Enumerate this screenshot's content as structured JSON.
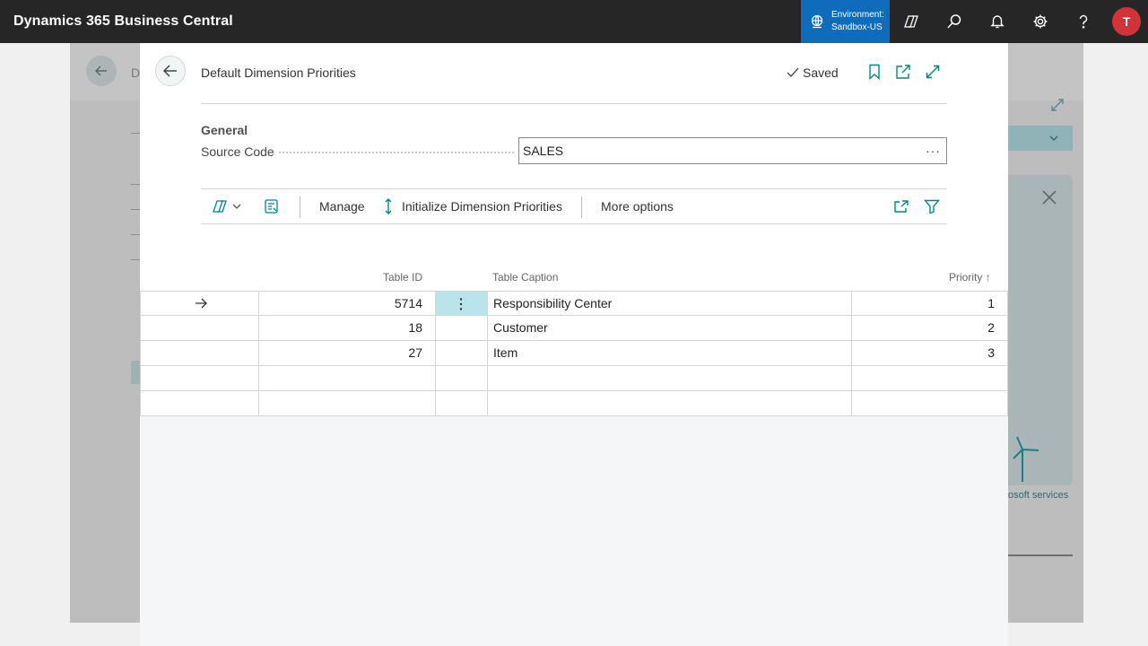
{
  "topbar": {
    "app_title": "Dynamics 365 Business Central",
    "environment_label": "Environment:",
    "environment_name": "Sandbox-US",
    "avatar_initial": "T"
  },
  "background": {
    "breadcrumb_initial": "D",
    "link_text": "osoft services"
  },
  "dialog": {
    "title": "Default Dimension Priorities",
    "status": "Saved",
    "section_title": "General",
    "source_code_label": "Source Code",
    "source_code_value": "SALES",
    "more_glyph": "···"
  },
  "toolbar": {
    "manage": "Manage",
    "initialize": "Initialize Dimension Priorities",
    "more_options": "More options"
  },
  "grid": {
    "columns": {
      "table_id": "Table ID",
      "table_caption": "Table Caption",
      "priority": "Priority",
      "sort_indicator": "↑"
    },
    "rows": [
      {
        "table_id": "5714",
        "table_caption": "Responsibility Center",
        "priority": "1"
      },
      {
        "table_id": "18",
        "table_caption": "Customer",
        "priority": "2"
      },
      {
        "table_id": "27",
        "table_caption": "Item",
        "priority": "3"
      },
      {
        "table_id": "",
        "table_caption": "",
        "priority": ""
      },
      {
        "table_id": "",
        "table_caption": "",
        "priority": ""
      }
    ]
  },
  "colors": {
    "topbar": "#262626",
    "environment": "#0f6cbd",
    "accent": "#00858a",
    "avatar": "#d13438",
    "selected_cell": "#b9e4ea"
  }
}
